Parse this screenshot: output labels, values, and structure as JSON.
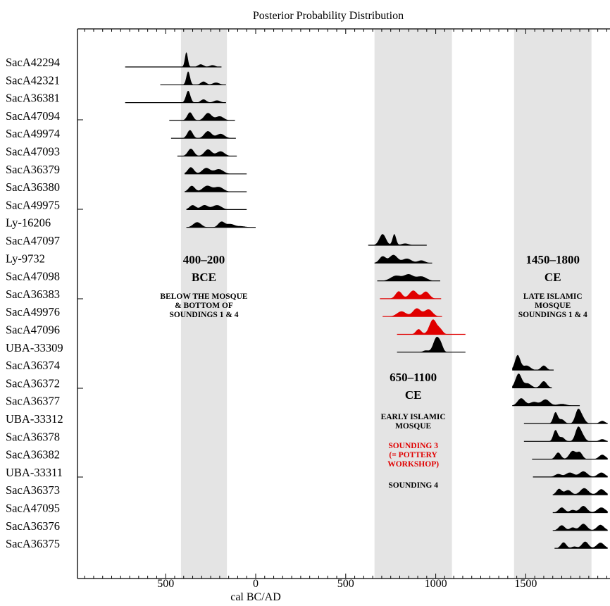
{
  "chart_data": {
    "type": "area",
    "title": "Posterior Probability Distribution",
    "xlabel": "cal BC/AD",
    "x_ticks": [
      {
        "value": -500,
        "label": "500"
      },
      {
        "value": 0,
        "label": "0"
      },
      {
        "value": 500,
        "label": "500"
      },
      {
        "value": 1000,
        "label": "1000"
      },
      {
        "value": 1500,
        "label": "1500"
      }
    ],
    "xlim": [
      -1000,
      1950
    ],
    "colors": {
      "black": "#000000",
      "red": "#e00000",
      "band": "#e4e4e4"
    },
    "bands": [
      {
        "range": [
          -415,
          -160
        ],
        "heading1": "400–200",
        "heading2": "BCE",
        "notes": [
          {
            "text": "BELOW THE MOSQUE",
            "color": "black"
          },
          {
            "text": "& BOTTOM OF",
            "color": "black"
          },
          {
            "text": "SOUNDINGS 1 & 4",
            "color": "black"
          }
        ]
      },
      {
        "range": [
          660,
          1090
        ],
        "heading1": "650–1100",
        "heading2": "CE",
        "notes": [
          {
            "text": "EARLY ISLAMIC",
            "color": "black"
          },
          {
            "text": "MOSQUE",
            "color": "black"
          },
          {
            "text": "SOUNDING 3",
            "color": "red"
          },
          {
            "text": "(= POTTERY",
            "color": "red"
          },
          {
            "text": "WORKSHOP)",
            "color": "red"
          },
          {
            "text": "SOUNDING 4",
            "color": "black"
          }
        ]
      },
      {
        "range": [
          1435,
          1865
        ],
        "heading1": "1450–1800",
        "heading2": "CE",
        "notes": [
          {
            "text": "LATE ISLAMIC",
            "color": "black"
          },
          {
            "text": "MOSQUE",
            "color": "black"
          },
          {
            "text": "SOUNDINGS 1 & 4",
            "color": "black"
          }
        ]
      }
    ],
    "series": [
      {
        "name": "SacA42294",
        "color": "black",
        "range": [
          -725,
          -190
        ],
        "peaks": [
          [
            -385,
            1.0,
            8
          ],
          [
            -305,
            0.18,
            15
          ],
          [
            -240,
            0.12,
            15
          ]
        ]
      },
      {
        "name": "SacA42321",
        "color": "black",
        "range": [
          -530,
          -165
        ],
        "peaks": [
          [
            -375,
            0.9,
            10
          ],
          [
            -290,
            0.22,
            15
          ],
          [
            -220,
            0.15,
            18
          ]
        ]
      },
      {
        "name": "SacA36381",
        "color": "black",
        "range": [
          -725,
          -165
        ],
        "peaks": [
          [
            -375,
            0.8,
            12
          ],
          [
            -290,
            0.22,
            15
          ],
          [
            -215,
            0.15,
            18
          ]
        ]
      },
      {
        "name": "SacA47094",
        "color": "black",
        "range": [
          -480,
          -115
        ],
        "peaks": [
          [
            -365,
            0.55,
            15
          ],
          [
            -265,
            0.5,
            20
          ],
          [
            -200,
            0.28,
            22
          ]
        ]
      },
      {
        "name": "SacA49974",
        "color": "black",
        "range": [
          -470,
          -110
        ],
        "peaks": [
          [
            -365,
            0.55,
            15
          ],
          [
            -265,
            0.48,
            20
          ],
          [
            -195,
            0.3,
            22
          ]
        ]
      },
      {
        "name": "SacA47093",
        "color": "black",
        "range": [
          -435,
          -105
        ],
        "peaks": [
          [
            -360,
            0.5,
            17
          ],
          [
            -265,
            0.45,
            20
          ],
          [
            -195,
            0.32,
            22
          ]
        ]
      },
      {
        "name": "SacA36379",
        "color": "black",
        "range": [
          -395,
          -50
        ],
        "peaks": [
          [
            -360,
            0.45,
            17
          ],
          [
            -275,
            0.4,
            22
          ],
          [
            -205,
            0.32,
            25
          ]
        ]
      },
      {
        "name": "SacA36380",
        "color": "black",
        "range": [
          -395,
          -50
        ],
        "peaks": [
          [
            -355,
            0.4,
            17
          ],
          [
            -270,
            0.4,
            24
          ],
          [
            -205,
            0.32,
            25
          ]
        ]
      },
      {
        "name": "SacA49975",
        "color": "black",
        "range": [
          -385,
          -50
        ],
        "peaks": [
          [
            -350,
            0.3,
            17
          ],
          [
            -285,
            0.3,
            20
          ],
          [
            -215,
            0.3,
            25
          ]
        ]
      },
      {
        "name": "Ly-16206",
        "color": "black",
        "range": [
          -385,
          0
        ],
        "peaks": [
          [
            -325,
            0.35,
            22
          ],
          [
            -190,
            0.38,
            18
          ],
          [
            -140,
            0.22,
            22
          ],
          [
            -80,
            0.08,
            25
          ]
        ]
      },
      {
        "name": "SacA47097",
        "color": "black",
        "range": [
          625,
          950
        ],
        "peaks": [
          [
            705,
            0.75,
            18
          ],
          [
            770,
            0.75,
            10
          ],
          [
            830,
            0.12,
            20
          ]
        ]
      },
      {
        "name": "Ly-9732",
        "color": "black",
        "range": [
          660,
          980
        ],
        "peaks": [
          [
            705,
            0.45,
            18
          ],
          [
            765,
            0.55,
            22
          ],
          [
            840,
            0.3,
            25
          ],
          [
            920,
            0.18,
            20
          ]
        ]
      },
      {
        "name": "SacA47098",
        "color": "black",
        "range": [
          675,
          1025
        ],
        "peaks": [
          [
            780,
            0.35,
            30
          ],
          [
            850,
            0.42,
            25
          ],
          [
            920,
            0.3,
            28
          ]
        ]
      },
      {
        "name": "SacA36383",
        "color": "red",
        "range": [
          690,
          1030
        ],
        "peaks": [
          [
            795,
            0.5,
            18
          ],
          [
            875,
            0.55,
            22
          ],
          [
            945,
            0.48,
            20
          ]
        ]
      },
      {
        "name": "SacA49976",
        "color": "red",
        "range": [
          705,
          1035
        ],
        "peaks": [
          [
            810,
            0.35,
            25
          ],
          [
            895,
            0.55,
            22
          ],
          [
            960,
            0.48,
            22
          ]
        ]
      },
      {
        "name": "SacA47096",
        "color": "red",
        "range": [
          785,
          1165
        ],
        "peaks": [
          [
            905,
            0.35,
            15
          ],
          [
            985,
            1.0,
            20
          ],
          [
            1025,
            0.3,
            15
          ]
        ]
      },
      {
        "name": "UBA-33309",
        "color": "black",
        "range": [
          785,
          1165
        ],
        "peaks": [
          [
            945,
            0.12,
            15
          ],
          [
            1005,
            1.0,
            18
          ],
          [
            1030,
            0.3,
            12
          ]
        ]
      },
      {
        "name": "SacA36374",
        "color": "black",
        "range": [
          1425,
          1655
        ],
        "peaks": [
          [
            1455,
            1.0,
            15
          ],
          [
            1505,
            0.3,
            20
          ],
          [
            1600,
            0.3,
            15
          ]
        ]
      },
      {
        "name": "SacA36372",
        "color": "black",
        "range": [
          1425,
          1645
        ],
        "peaks": [
          [
            1460,
            0.95,
            17
          ],
          [
            1510,
            0.3,
            20
          ],
          [
            1600,
            0.45,
            17
          ]
        ]
      },
      {
        "name": "SacA36377",
        "color": "black",
        "range": [
          1425,
          1800
        ],
        "peaks": [
          [
            1475,
            0.5,
            20
          ],
          [
            1545,
            0.25,
            22
          ],
          [
            1610,
            0.42,
            22
          ],
          [
            1700,
            0.12,
            25
          ]
        ]
      },
      {
        "name": "UBA-33312",
        "color": "black",
        "range": [
          1490,
          1955
        ],
        "peaks": [
          [
            1665,
            0.75,
            12
          ],
          [
            1700,
            0.28,
            15
          ],
          [
            1790,
            0.9,
            15
          ],
          [
            1815,
            0.35,
            15
          ],
          [
            1925,
            0.18,
            15
          ]
        ]
      },
      {
        "name": "SacA36378",
        "color": "black",
        "range": [
          1490,
          1955
        ],
        "peaks": [
          [
            1665,
            0.75,
            12
          ],
          [
            1700,
            0.28,
            15
          ],
          [
            1790,
            0.9,
            15
          ],
          [
            1815,
            0.35,
            15
          ],
          [
            1925,
            0.15,
            15
          ]
        ]
      },
      {
        "name": "SacA36382",
        "color": "black",
        "range": [
          1535,
          1955
        ],
        "peaks": [
          [
            1680,
            0.45,
            15
          ],
          [
            1760,
            0.55,
            18
          ],
          [
            1800,
            0.45,
            15
          ],
          [
            1925,
            0.3,
            18
          ]
        ]
      },
      {
        "name": "UBA-33311",
        "color": "black",
        "range": [
          1540,
          1955
        ],
        "peaks": [
          [
            1680,
            0.2,
            18
          ],
          [
            1745,
            0.3,
            22
          ],
          [
            1820,
            0.38,
            22
          ],
          [
            1920,
            0.3,
            20
          ]
        ]
      },
      {
        "name": "SacA36373",
        "color": "black",
        "range": [
          1650,
          1955
        ],
        "peaks": [
          [
            1685,
            0.4,
            15
          ],
          [
            1735,
            0.32,
            18
          ],
          [
            1825,
            0.45,
            22
          ],
          [
            1920,
            0.38,
            20
          ]
        ]
      },
      {
        "name": "SacA47095",
        "color": "black",
        "range": [
          1650,
          1955
        ],
        "peaks": [
          [
            1700,
            0.35,
            17
          ],
          [
            1760,
            0.18,
            15
          ],
          [
            1820,
            0.45,
            20
          ],
          [
            1920,
            0.35,
            22
          ]
        ]
      },
      {
        "name": "SacA36376",
        "color": "black",
        "range": [
          1650,
          1955
        ],
        "peaks": [
          [
            1700,
            0.35,
            17
          ],
          [
            1760,
            0.2,
            15
          ],
          [
            1820,
            0.45,
            20
          ],
          [
            1915,
            0.38,
            20
          ]
        ]
      },
      {
        "name": "SacA36375",
        "color": "black",
        "range": [
          1660,
          1955
        ],
        "peaks": [
          [
            1710,
            0.4,
            15
          ],
          [
            1770,
            0.12,
            15
          ],
          [
            1830,
            0.45,
            18
          ],
          [
            1915,
            0.38,
            20
          ]
        ]
      }
    ]
  }
}
